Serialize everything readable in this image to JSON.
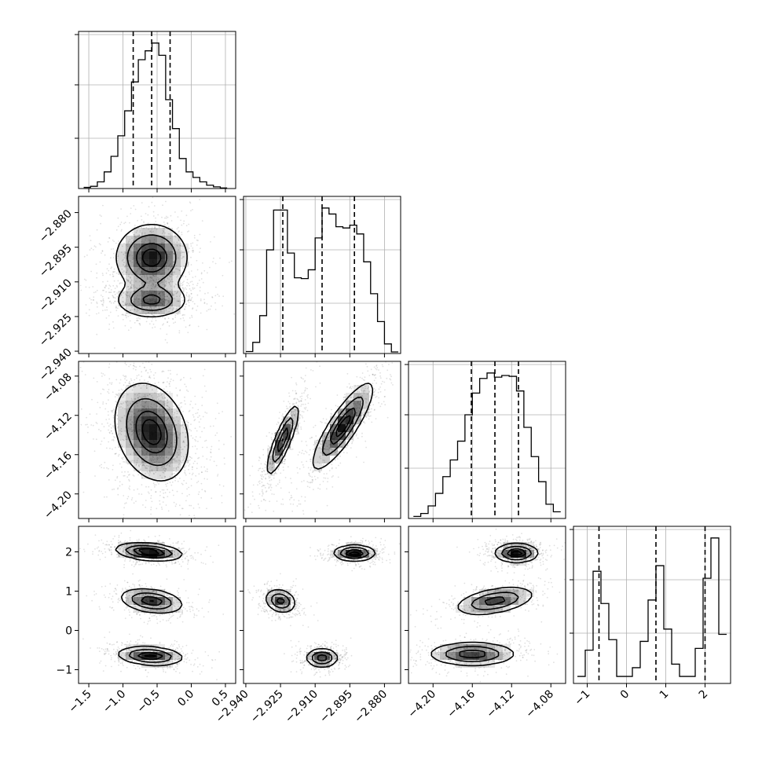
{
  "chart_data": {
    "type": "corner",
    "title": "",
    "parameters": [
      {
        "index": 0,
        "range": [
          -1.65,
          0.65
        ],
        "ticks": [
          -1.5,
          -1.0,
          -0.5,
          0.0,
          0.5
        ],
        "tick_labels": [
          "−1.5",
          "−1.0",
          "−0.5",
          "0.0",
          "0.5"
        ],
        "quantiles": [
          -0.85,
          -0.58,
          -0.31
        ]
      },
      {
        "index": 1,
        "range": [
          -2.941,
          -2.873
        ],
        "ticks": [
          -2.94,
          -2.925,
          -2.91,
          -2.895,
          -2.88
        ],
        "tick_labels": [
          "−2.940",
          "−2.925",
          "−2.910",
          "−2.895",
          "−2.880"
        ],
        "quantiles": [
          -2.924,
          -2.907,
          -2.893
        ]
      },
      {
        "index": 2,
        "range": [
          -4.225,
          -4.065
        ],
        "ticks": [
          -4.2,
          -4.16,
          -4.12,
          -4.08
        ],
        "tick_labels": [
          "−4.20",
          "−4.16",
          "−4.12",
          "−4.08"
        ],
        "quantiles": [
          -4.161,
          -4.137,
          -4.113
        ]
      },
      {
        "index": 3,
        "range": [
          -1.35,
          2.65
        ],
        "ticks": [
          -1,
          0,
          1,
          2
        ],
        "tick_labels": [
          "−1",
          "0",
          "1",
          "2"
        ],
        "quantiles": [
          -0.7,
          0.75,
          2.0
        ]
      }
    ],
    "histograms": [
      {
        "param": 0,
        "bin_edges": [
          -1.575,
          -1.475,
          -1.375,
          -1.275,
          -1.175,
          -1.075,
          -0.975,
          -0.875,
          -0.775,
          -0.675,
          -0.575,
          -0.475,
          -0.375,
          -0.275,
          -0.175,
          -0.075,
          0.025,
          0.125,
          0.225,
          0.325,
          0.425,
          0.525
        ],
        "counts": [
          2,
          4,
          12,
          30,
          58,
          95,
          140,
          192,
          232,
          248,
          262,
          240,
          160,
          108,
          54,
          30,
          20,
          12,
          6,
          3,
          1
        ]
      },
      {
        "param": 1,
        "bin_edges": [
          -2.94,
          -2.937,
          -2.934,
          -2.931,
          -2.928,
          -2.925,
          -2.922,
          -2.919,
          -2.916,
          -2.913,
          -2.91,
          -2.907,
          -2.904,
          -2.901,
          -2.898,
          -2.895,
          -2.892,
          -2.889,
          -2.886,
          -2.883,
          -2.88,
          -2.877,
          -2.874
        ],
        "counts": [
          5,
          28,
          95,
          260,
          360,
          360,
          252,
          190,
          188,
          210,
          290,
          365,
          350,
          318,
          315,
          322,
          300,
          230,
          150,
          80,
          24,
          4
        ]
      },
      {
        "param": 2,
        "bin_edges": [
          -4.22,
          -4.2125,
          -4.205,
          -4.1975,
          -4.19,
          -4.1825,
          -4.175,
          -4.1675,
          -4.16,
          -4.1525,
          -4.145,
          -4.1375,
          -4.13,
          -4.1225,
          -4.115,
          -4.1075,
          -4.1,
          -4.0925,
          -4.085,
          -4.0775,
          -4.07
        ],
        "counts": [
          5,
          12,
          30,
          60,
          100,
          140,
          185,
          248,
          300,
          335,
          348,
          338,
          342,
          340,
          305,
          218,
          148,
          88,
          34,
          16
        ]
      },
      {
        "param": 3,
        "bin_edges": [
          -1.25,
          -1.05,
          -0.85,
          -0.65,
          -0.45,
          -0.25,
          -0.05,
          0.15,
          0.35,
          0.55,
          0.75,
          0.95,
          1.15,
          1.35,
          1.55,
          1.75,
          1.95,
          2.15,
          2.35,
          2.55
        ],
        "counts": [
          20,
          95,
          320,
          228,
          125,
          20,
          20,
          45,
          120,
          238,
          336,
          155,
          55,
          20,
          20,
          100,
          300,
          415,
          140
        ]
      }
    ],
    "panels_2d": [
      {
        "x": 0,
        "y": 1,
        "modes": [
          {
            "center": [
              -0.58,
              -2.8995
            ],
            "sigma": [
              0.26,
              0.0072
            ],
            "rho": 0.0,
            "weight": 1.0
          },
          {
            "center": [
              -0.58,
              -2.918
            ],
            "sigma": [
              0.26,
              0.0038
            ],
            "rho": 0.0,
            "weight": 0.75
          }
        ]
      },
      {
        "x": 0,
        "y": 2,
        "modes": [
          {
            "center": [
              -0.58,
              -4.137
            ],
            "sigma": [
              0.27,
              0.025
            ],
            "rho": -0.25,
            "weight": 1.0
          }
        ]
      },
      {
        "x": 1,
        "y": 2,
        "modes": [
          {
            "center": [
              -2.924,
              -4.145
            ],
            "sigma": [
              0.0035,
              0.018
            ],
            "rho": 0.85,
            "weight": 0.9
          },
          {
            "center": [
              -2.898,
              -4.131
            ],
            "sigma": [
              0.0065,
              0.022
            ],
            "rho": 0.85,
            "weight": 1.0
          }
        ]
      },
      {
        "x": 0,
        "y": 3,
        "modes": [
          {
            "center": [
              -0.62,
              2.0
            ],
            "sigma": [
              0.24,
              0.11
            ],
            "rho": -0.3,
            "weight": 1.0
          },
          {
            "center": [
              -0.58,
              0.75
            ],
            "sigma": [
              0.23,
              0.16
            ],
            "rho": -0.3,
            "weight": 0.8
          },
          {
            "center": [
              -0.6,
              -0.65
            ],
            "sigma": [
              0.24,
              0.12
            ],
            "rho": -0.2,
            "weight": 0.85
          }
        ]
      },
      {
        "x": 1,
        "y": 3,
        "modes": [
          {
            "center": [
              -2.893,
              1.97
            ],
            "sigma": [
              0.0045,
              0.1
            ],
            "rho": 0.0,
            "weight": 1.0
          },
          {
            "center": [
              -2.925,
              0.75
            ],
            "sigma": [
              0.0033,
              0.15
            ],
            "rho": -0.2,
            "weight": 0.8
          },
          {
            "center": [
              -2.907,
              -0.7
            ],
            "sigma": [
              0.0035,
              0.12
            ],
            "rho": 0.0,
            "weight": 0.85
          }
        ]
      },
      {
        "x": 2,
        "y": 3,
        "modes": [
          {
            "center": [
              -4.115,
              1.97
            ],
            "sigma": [
              0.011,
              0.12
            ],
            "rho": 0.0,
            "weight": 1.0
          },
          {
            "center": [
              -4.137,
              0.75
            ],
            "sigma": [
              0.02,
              0.18
            ],
            "rho": 0.45,
            "weight": 0.8
          },
          {
            "center": [
              -4.16,
              -0.6
            ],
            "sigma": [
              0.022,
              0.15
            ],
            "rho": 0.0,
            "weight": 0.85
          }
        ]
      }
    ]
  }
}
